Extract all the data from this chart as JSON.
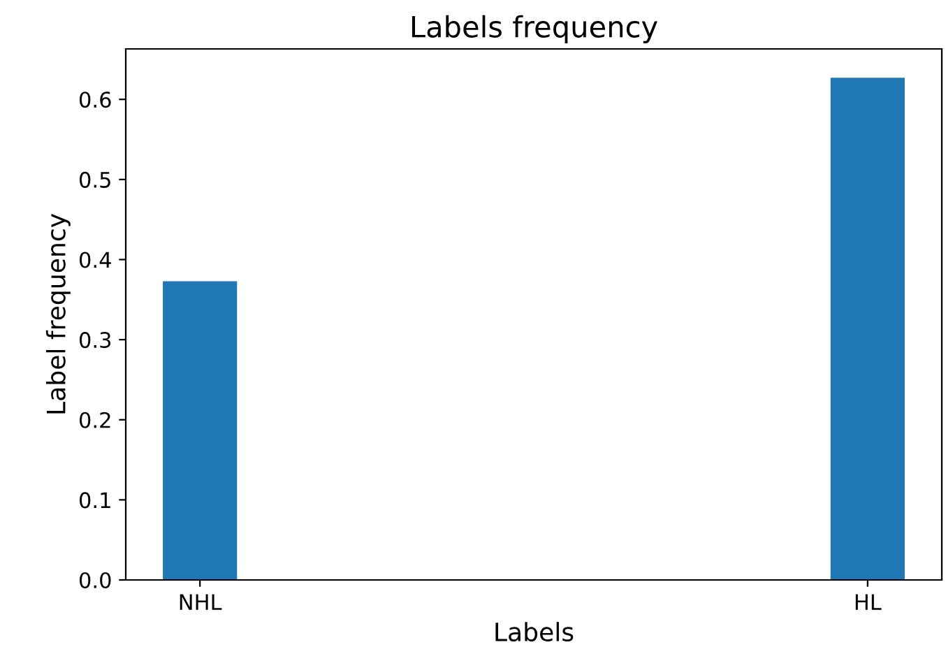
{
  "chart_data": {
    "type": "bar",
    "title": "Labels frequency",
    "xlabel": "Labels",
    "ylabel": "Label frequency",
    "categories": [
      "NHL",
      null,
      null,
      null,
      null,
      null,
      null,
      null,
      null,
      "HL"
    ],
    "values": [
      0.373,
      0,
      0,
      0,
      0,
      0,
      0,
      0,
      0,
      0.627
    ],
    "color": "#1f77b4",
    "ylim": [
      0,
      0.663
    ],
    "yticks": [
      {
        "value": 0,
        "label": "0.0"
      },
      0.1,
      0.2,
      0.3,
      0.4,
      0.5,
      0.6
    ],
    "grid": false
  }
}
